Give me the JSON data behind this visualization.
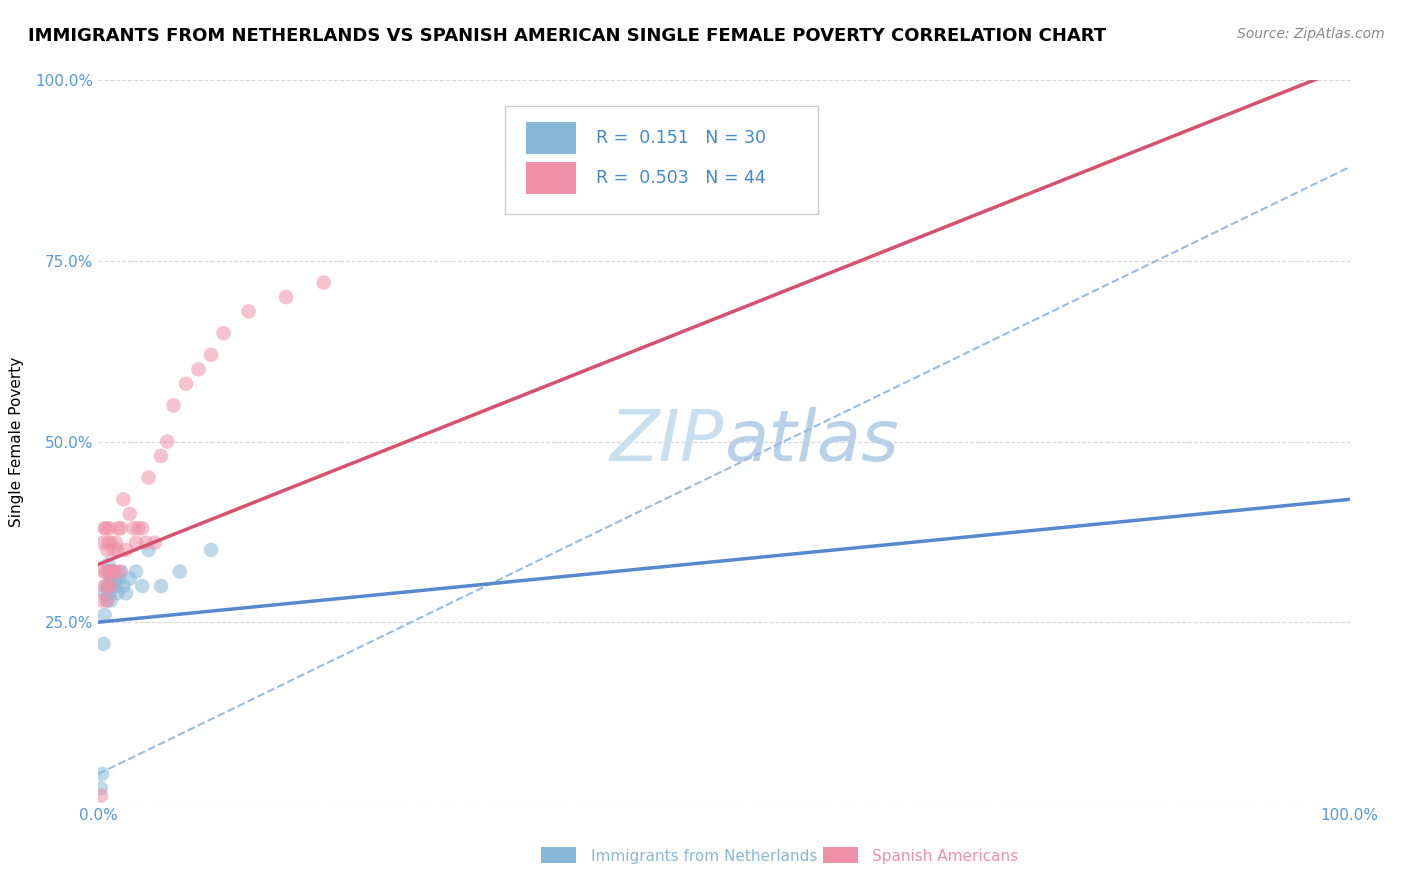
{
  "title": "IMMIGRANTS FROM NETHERLANDS VS SPANISH AMERICAN SINGLE FEMALE POVERTY CORRELATION CHART",
  "source": "Source: ZipAtlas.com",
  "ylabel": "Single Female Poverty",
  "xlim": [
    0,
    1.0
  ],
  "ylim": [
    0,
    1.0
  ],
  "legend_entries": [
    {
      "label": "Immigrants from Netherlands",
      "color": "#a8c8e8",
      "R": "0.151",
      "N": "30"
    },
    {
      "label": "Spanish Americans",
      "color": "#f4a0b8",
      "R": "0.503",
      "N": "44"
    }
  ],
  "watermark_part1": "ZIP",
  "watermark_part2": "atlas",
  "blue_scatter_x": [
    0.002,
    0.003,
    0.004,
    0.005,
    0.005,
    0.006,
    0.007,
    0.007,
    0.008,
    0.008,
    0.009,
    0.009,
    0.01,
    0.01,
    0.011,
    0.012,
    0.013,
    0.014,
    0.015,
    0.016,
    0.018,
    0.02,
    0.022,
    0.025,
    0.03,
    0.035,
    0.04,
    0.05,
    0.065,
    0.09
  ],
  "blue_scatter_y": [
    0.02,
    0.04,
    0.22,
    0.26,
    0.29,
    0.3,
    0.28,
    0.32,
    0.3,
    0.33,
    0.29,
    0.32,
    0.28,
    0.31,
    0.3,
    0.32,
    0.31,
    0.3,
    0.29,
    0.31,
    0.32,
    0.3,
    0.29,
    0.31,
    0.32,
    0.3,
    0.35,
    0.3,
    0.32,
    0.35
  ],
  "pink_scatter_x": [
    0.002,
    0.003,
    0.004,
    0.004,
    0.005,
    0.005,
    0.006,
    0.006,
    0.007,
    0.007,
    0.008,
    0.008,
    0.009,
    0.009,
    0.01,
    0.01,
    0.011,
    0.012,
    0.013,
    0.014,
    0.015,
    0.016,
    0.017,
    0.018,
    0.02,
    0.022,
    0.025,
    0.028,
    0.03,
    0.032,
    0.035,
    0.038,
    0.04,
    0.045,
    0.05,
    0.055,
    0.06,
    0.07,
    0.08,
    0.09,
    0.1,
    0.12,
    0.15,
    0.18
  ],
  "pink_scatter_y": [
    0.01,
    0.28,
    0.32,
    0.36,
    0.3,
    0.38,
    0.32,
    0.38,
    0.28,
    0.35,
    0.3,
    0.36,
    0.32,
    0.38,
    0.3,
    0.36,
    0.32,
    0.35,
    0.32,
    0.36,
    0.35,
    0.38,
    0.32,
    0.38,
    0.42,
    0.35,
    0.4,
    0.38,
    0.36,
    0.38,
    0.38,
    0.36,
    0.45,
    0.36,
    0.48,
    0.5,
    0.55,
    0.58,
    0.6,
    0.62,
    0.65,
    0.68,
    0.7,
    0.72
  ],
  "blue_line_x": [
    0.0,
    1.0
  ],
  "blue_line_y": [
    0.25,
    0.42
  ],
  "pink_line_x": [
    0.0,
    1.0
  ],
  "pink_line_y": [
    0.33,
    1.02
  ],
  "dashed_line_x": [
    0.0,
    1.0
  ],
  "dashed_line_y": [
    0.04,
    0.88
  ],
  "scatter_size": 110,
  "scatter_alpha": 0.55,
  "blue_color": "#88b8d8",
  "pink_color": "#f090a8",
  "blue_line_color": "#5588cc",
  "pink_line_color": "#d85070",
  "dashed_line_color": "#99bbdd",
  "background_color": "#ffffff",
  "grid_color": "#d8d8d8",
  "title_fontsize": 13,
  "source_fontsize": 10,
  "axis_tick_color": "#5599dd",
  "watermark_color1": "#c8dff0",
  "watermark_color2": "#b8d0e8",
  "watermark_fontsize": 52
}
